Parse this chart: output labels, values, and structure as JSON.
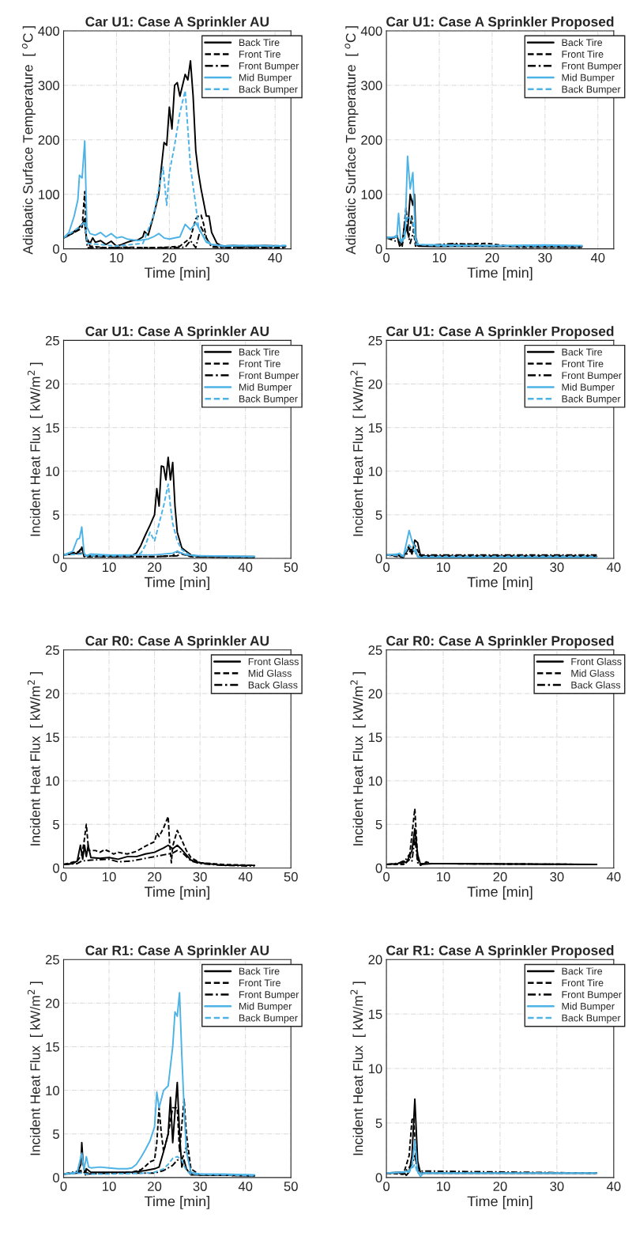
{
  "chart_data": [
    {
      "type": "line",
      "title": "Car U1: Case A Sprinkler AU",
      "xlabel": "Time [min]",
      "ylabel": "Adiabatic Surface Temperature  [ $^{o}$C ]",
      "xlim": [
        0,
        43
      ],
      "xticks": [
        0,
        10,
        20,
        30,
        40
      ],
      "ylim": [
        0,
        400
      ],
      "yticks": [
        0,
        100,
        200,
        300,
        400
      ],
      "grid": true,
      "legend": "top right",
      "series": [
        {
          "name": "Back Tire",
          "color": "#000000",
          "line_style": "solid",
          "x": [
            0,
            1,
            2,
            3,
            3.5,
            4,
            4.3,
            5,
            5.5,
            6,
            7,
            8,
            9,
            10,
            11,
            12,
            13,
            14,
            15,
            15.3,
            16,
            17,
            18,
            18.5,
            19,
            19.5,
            20,
            20.5,
            21,
            21.5,
            22,
            23,
            23.5,
            24,
            24.5,
            25,
            25.5,
            26,
            27,
            27.5,
            28,
            29,
            30,
            32,
            35,
            38,
            42
          ],
          "values": [
            20,
            25,
            32,
            40,
            45,
            55,
            20,
            10,
            20,
            12,
            15,
            8,
            14,
            5,
            8,
            12,
            15,
            16,
            22,
            32,
            25,
            60,
            100,
            150,
            195,
            190,
            260,
            220,
            300,
            305,
            280,
            320,
            310,
            345,
            280,
            180,
            140,
            110,
            60,
            60,
            30,
            10,
            5,
            6,
            5,
            6,
            5
          ]
        },
        {
          "name": "Front Tire",
          "color": "#000000",
          "line_style": "dashed",
          "x": [
            0,
            2,
            3.5,
            4,
            4.3,
            5,
            8,
            12,
            16,
            20,
            22,
            24,
            25,
            25.5,
            26,
            26.5,
            27,
            28,
            30,
            35,
            42
          ],
          "values": [
            20,
            30,
            40,
            105,
            20,
            5,
            2,
            3,
            2,
            3,
            5,
            20,
            55,
            60,
            62,
            45,
            20,
            5,
            3,
            3,
            3
          ]
        },
        {
          "name": "Front Bumper",
          "color": "#000000",
          "line_style": "dashdot",
          "x": [
            0,
            3,
            4,
            4.5,
            10,
            20,
            23,
            24,
            25,
            26,
            27,
            28,
            35,
            42
          ],
          "values": [
            20,
            35,
            45,
            2,
            2,
            2,
            3,
            15,
            2,
            40,
            20,
            3,
            2,
            2
          ]
        },
        {
          "name": "Mid Bumper",
          "color": "#4db3e6",
          "line_style": "solid",
          "x": [
            0,
            1,
            2,
            2.7,
            3,
            3.5,
            4,
            4.4,
            5,
            6,
            7,
            8,
            9,
            10,
            11,
            12,
            14,
            16,
            17,
            18,
            19,
            20,
            22,
            23,
            24,
            25,
            26,
            27,
            28,
            30,
            35,
            40,
            42
          ],
          "values": [
            20,
            30,
            60,
            90,
            135,
            130,
            198,
            40,
            28,
            25,
            30,
            22,
            28,
            20,
            22,
            18,
            15,
            18,
            22,
            28,
            20,
            18,
            22,
            45,
            35,
            48,
            30,
            12,
            8,
            5,
            6,
            5,
            6
          ]
        },
        {
          "name": "Back Bumper",
          "color": "#4db3e6",
          "line_style": "dashed",
          "x": [
            0,
            3,
            4,
            4.5,
            10,
            15,
            17,
            18,
            18.8,
            19.5,
            20,
            21,
            22,
            23,
            23.5,
            24,
            25,
            25.5,
            26,
            27,
            28,
            30,
            42
          ],
          "values": [
            20,
            40,
            50,
            10,
            5,
            10,
            60,
            110,
            150,
            80,
            140,
            190,
            250,
            290,
            220,
            150,
            80,
            40,
            30,
            15,
            8,
            6,
            6
          ]
        }
      ]
    },
    {
      "type": "line",
      "title": "Car U1: Case A Sprinkler Proposed",
      "xlabel": "Time [min]",
      "ylabel": "Adiabatic Surface Temperature  [ $^{o}$C ]",
      "xlim": [
        0,
        43
      ],
      "xticks": [
        0,
        10,
        20,
        30,
        40
      ],
      "ylim": [
        0,
        400
      ],
      "yticks": [
        0,
        100,
        200,
        300,
        400
      ],
      "grid": true,
      "legend": "top right",
      "series": [
        {
          "name": "Back Tire",
          "color": "#000000",
          "line_style": "solid",
          "x": [
            0,
            1.5,
            2,
            2.5,
            3,
            3.5,
            4,
            4.5,
            5,
            5.3,
            5.6,
            6,
            10,
            15,
            20,
            25,
            30,
            37
          ],
          "values": [
            20,
            20,
            25,
            5,
            10,
            50,
            30,
            100,
            80,
            100,
            10,
            5,
            4,
            5,
            4,
            5,
            4,
            4
          ]
        },
        {
          "name": "Front Tire",
          "color": "#000000",
          "line_style": "dashed",
          "x": [
            0,
            2,
            3,
            3.7,
            4.2,
            4.8,
            5.5,
            13,
            19,
            25,
            37
          ],
          "values": [
            20,
            22,
            5,
            75,
            20,
            60,
            5,
            8,
            10,
            3,
            3
          ]
        },
        {
          "name": "Front Bumper",
          "color": "#000000",
          "line_style": "dashdot",
          "x": [
            0,
            3,
            3.8,
            4.5,
            5.2,
            6,
            13,
            20,
            37
          ],
          "values": [
            20,
            10,
            40,
            10,
            35,
            5,
            10,
            5,
            3
          ]
        },
        {
          "name": "Mid Bumper",
          "color": "#4db3e6",
          "line_style": "solid",
          "x": [
            0,
            1.5,
            2,
            2.3,
            2.7,
            3.5,
            4,
            4.5,
            5,
            5.5,
            6,
            10,
            20,
            30,
            37
          ],
          "values": [
            20,
            22,
            25,
            65,
            15,
            20,
            170,
            110,
            140,
            20,
            8,
            7,
            6,
            7,
            6
          ]
        },
        {
          "name": "Back Bumper",
          "color": "#4db3e6",
          "line_style": "dashed",
          "x": [
            0,
            2,
            3,
            4,
            5,
            5.6,
            10,
            20,
            30,
            37
          ],
          "values": [
            20,
            22,
            10,
            60,
            50,
            8,
            5,
            5,
            5,
            5
          ]
        }
      ]
    },
    {
      "type": "line",
      "title": "Car U1: Case A Sprinkler AU",
      "xlabel": "Time [min]",
      "ylabel": "Incident Heat Flux  [ kW/m$^{2}$ ]",
      "xlim": [
        0,
        50
      ],
      "xticks": [
        0,
        10,
        20,
        30,
        40,
        50
      ],
      "ylim": [
        0,
        25
      ],
      "yticks": [
        0,
        5,
        10,
        15,
        20,
        25
      ],
      "grid": true,
      "legend": "top right",
      "series": [
        {
          "name": "Back Tire",
          "color": "#000000",
          "line_style": "solid",
          "x": [
            0,
            2,
            3,
            4,
            4.5,
            6,
            10,
            15,
            16,
            17,
            18,
            19,
            20,
            20.5,
            21,
            21.5,
            22,
            22.5,
            23,
            23.5,
            24,
            24.5,
            25,
            26,
            27,
            28,
            30,
            42
          ],
          "values": [
            0.4,
            0.5,
            0.6,
            1.2,
            0.3,
            0.3,
            0.3,
            0.3,
            0.6,
            1.5,
            2.7,
            3.8,
            5,
            8,
            6,
            10.6,
            10.5,
            9,
            11.6,
            9,
            11,
            6,
            3,
            1.2,
            0.8,
            0.4,
            0.2,
            0.2
          ]
        },
        {
          "name": "Front Tire",
          "color": "#000000",
          "line_style": "dashed",
          "x": [
            0,
            3.5,
            4,
            4.5,
            10,
            20,
            24,
            25,
            26,
            28,
            42
          ],
          "values": [
            0.4,
            0.8,
            1.3,
            0.2,
            0.2,
            0.2,
            0.3,
            0.8,
            0.5,
            0.2,
            0.1
          ]
        },
        {
          "name": "Front Bumper",
          "color": "#000000",
          "line_style": "dashdot",
          "x": [
            0,
            4,
            5,
            10,
            20,
            25,
            26,
            28,
            42
          ],
          "values": [
            0.4,
            0.6,
            0.2,
            0.2,
            0.2,
            0.3,
            0.6,
            0.2,
            0.1
          ]
        },
        {
          "name": "Mid Bumper",
          "color": "#4db3e6",
          "line_style": "solid",
          "x": [
            0,
            2,
            3,
            3.5,
            4,
            4.5,
            5,
            6,
            10,
            15,
            20,
            24,
            25,
            27,
            30,
            42
          ],
          "values": [
            0.4,
            0.8,
            2.2,
            2.3,
            3.6,
            0.6,
            0.3,
            0.5,
            0.4,
            0.4,
            0.4,
            0.6,
            0.8,
            0.4,
            0.3,
            0.2
          ]
        },
        {
          "name": "Back Bumper",
          "color": "#4db3e6",
          "line_style": "dashed",
          "x": [
            0,
            4,
            5,
            15,
            17,
            18,
            19,
            20,
            21,
            22,
            23,
            23.5,
            24,
            25,
            26,
            28,
            42
          ],
          "values": [
            0.4,
            0.5,
            0.3,
            0.3,
            0.6,
            1.5,
            3,
            2,
            4,
            6,
            8.5,
            6,
            4,
            2,
            1,
            0.3,
            0.2
          ]
        }
      ]
    },
    {
      "type": "line",
      "title": "Car U1: Case A Sprinkler Proposed",
      "xlabel": "Time [min]",
      "ylabel": "Incident Heat Flux  [ kW/m$^{2}$ ]",
      "xlim": [
        0,
        40
      ],
      "xticks": [
        0,
        10,
        20,
        30,
        40
      ],
      "ylim": [
        0,
        25
      ],
      "yticks": [
        0,
        5,
        10,
        15,
        20,
        25
      ],
      "grid": true,
      "legend": "top right",
      "series": [
        {
          "name": "Back Tire",
          "color": "#000000",
          "line_style": "solid",
          "x": [
            0,
            2,
            3,
            4,
            4.5,
            5,
            5.5,
            6,
            10,
            37
          ],
          "values": [
            0.4,
            0.4,
            0.2,
            1.2,
            0.5,
            2.1,
            1.8,
            0.3,
            0.2,
            0.2
          ]
        },
        {
          "name": "Front Tire",
          "color": "#000000",
          "line_style": "dashed",
          "x": [
            0,
            3,
            4,
            4.5,
            5,
            6,
            37
          ],
          "values": [
            0.4,
            0.1,
            1.5,
            0.8,
            1.5,
            0.3,
            0.3
          ]
        },
        {
          "name": "Front Bumper",
          "color": "#000000",
          "line_style": "dashdot",
          "x": [
            0,
            3,
            4.5,
            5.5,
            37
          ],
          "values": [
            0.4,
            0.2,
            1.0,
            0.4,
            0.4
          ]
        },
        {
          "name": "Mid Bumper",
          "color": "#4db3e6",
          "line_style": "solid",
          "x": [
            0,
            2,
            2.3,
            3,
            4,
            4.5,
            5,
            5.5,
            6,
            37
          ],
          "values": [
            0.4,
            0.5,
            0.6,
            0.2,
            3.2,
            2.0,
            1.3,
            0.2,
            0.1,
            0.1
          ]
        },
        {
          "name": "Back Bumper",
          "color": "#4db3e6",
          "line_style": "dashed",
          "x": [
            0,
            3,
            4,
            5,
            5.5,
            37
          ],
          "values": [
            0.4,
            0.3,
            1.5,
            0.8,
            0.2,
            0.2
          ]
        }
      ]
    },
    {
      "type": "line",
      "title": "Car R0: Case A Sprinkler AU",
      "xlabel": "Time [min]",
      "ylabel": "Incident Heat Flux  [ kW/m$^{2}$ ]",
      "xlim": [
        0,
        50
      ],
      "xticks": [
        0,
        10,
        20,
        30,
        40,
        50
      ],
      "ylim": [
        0,
        25
      ],
      "yticks": [
        0,
        5,
        10,
        15,
        20,
        25
      ],
      "grid": true,
      "legend": "top right",
      "series": [
        {
          "name": "Front Glass",
          "color": "#000000",
          "line_style": "solid",
          "x": [
            0,
            2,
            3,
            3.7,
            4.2,
            4.6,
            5,
            5.4,
            6,
            8,
            10,
            12,
            14,
            16,
            18,
            20,
            22,
            23,
            24,
            25,
            26,
            27,
            28,
            30,
            35,
            42
          ],
          "values": [
            0.4,
            0.5,
            0.8,
            2.6,
            1,
            2.6,
            1.3,
            2.6,
            1.2,
            1.1,
            1.2,
            1.0,
            1.3,
            1.3,
            1.6,
            1.8,
            2.3,
            2.6,
            2.2,
            2.6,
            2.1,
            1.5,
            0.9,
            0.6,
            0.3,
            0.3
          ]
        },
        {
          "name": "Mid Glass",
          "color": "#000000",
          "line_style": "dashed",
          "x": [
            0,
            3,
            4,
            4.5,
            5,
            5.5,
            7,
            8,
            9,
            10,
            11,
            12,
            14,
            16,
            18,
            20,
            20.5,
            21,
            22,
            23,
            23.3,
            23.7,
            24,
            25,
            26,
            27,
            28,
            30,
            35,
            42
          ],
          "values": [
            0.4,
            0.8,
            1.5,
            3,
            5,
            2,
            2,
            1.8,
            2.1,
            1.9,
            1.6,
            1.8,
            1.6,
            1.9,
            2.5,
            3,
            4,
            3.6,
            4.6,
            5.9,
            3,
            0.6,
            2.5,
            4.3,
            3.2,
            2,
            1.2,
            0.6,
            0.4,
            0.3
          ]
        },
        {
          "name": "Back Glass",
          "color": "#000000",
          "line_style": "dashdot",
          "x": [
            0,
            3,
            4,
            6,
            10,
            12,
            15,
            18,
            20,
            22,
            24,
            25,
            26,
            27,
            28,
            30,
            35,
            42
          ],
          "values": [
            0.4,
            0.5,
            0.8,
            0.9,
            1.0,
            0.7,
            0.8,
            1.1,
            1.3,
            1.5,
            1.7,
            2.0,
            1.8,
            1.3,
            0.8,
            0.5,
            0.3,
            0.2
          ]
        }
      ]
    },
    {
      "type": "line",
      "title": "Car R0: Case A Sprinkler Proposed",
      "xlabel": "Time [min]",
      "ylabel": "Incident Heat Flux  [ kW/m$^{2}$ ]",
      "xlim": [
        0,
        40
      ],
      "xticks": [
        0,
        10,
        20,
        30,
        40
      ],
      "ylim": [
        0,
        25
      ],
      "yticks": [
        0,
        5,
        10,
        15,
        20,
        25
      ],
      "grid": true,
      "legend": "top right",
      "series": [
        {
          "name": "Front Glass",
          "color": "#000000",
          "line_style": "solid",
          "x": [
            0,
            2,
            3,
            3.5,
            4.5,
            5,
            5.5,
            6,
            8,
            10,
            37
          ],
          "values": [
            0.4,
            0.5,
            0.8,
            0.6,
            2,
            4.5,
            1.5,
            0.4,
            0.5,
            0.5,
            0.4
          ]
        },
        {
          "name": "Mid Glass",
          "color": "#000000",
          "line_style": "dashed",
          "x": [
            0,
            3,
            4,
            5,
            5.5,
            6,
            7,
            8,
            37
          ],
          "values": [
            0.4,
            0.4,
            0.9,
            6.8,
            1,
            0.3,
            0.7,
            0.5,
            0.4
          ]
        },
        {
          "name": "Back Glass",
          "color": "#000000",
          "line_style": "dashdot",
          "x": [
            0,
            3,
            4,
            4.5,
            5,
            5.5,
            6,
            37
          ],
          "values": [
            0.4,
            0.6,
            1.5,
            0.8,
            3.5,
            0.6,
            0.5,
            0.4
          ]
        }
      ]
    },
    {
      "type": "line",
      "title": "Car R1: Case A Sprinkler AU",
      "xlabel": "Time [min]",
      "ylabel": "Incident Heat Flux  [ kW/m$^{2}$ ]",
      "xlim": [
        0,
        50
      ],
      "xticks": [
        0,
        10,
        20,
        30,
        40,
        50
      ],
      "ylim": [
        0,
        25
      ],
      "yticks": [
        0,
        5,
        10,
        15,
        20,
        25
      ],
      "grid": true,
      "legend": "top right",
      "series": [
        {
          "name": "Back Tire",
          "color": "#000000",
          "line_style": "solid",
          "x": [
            0,
            3,
            3.8,
            4,
            4.3,
            4.8,
            5,
            6,
            10,
            15,
            18,
            20,
            21,
            22,
            23,
            23.5,
            24,
            24.5,
            25,
            25.5,
            26,
            26.5,
            27,
            28,
            30,
            42
          ],
          "values": [
            0.4,
            0.5,
            1.5,
            4.0,
            1.5,
            0.3,
            1.0,
            0.6,
            0.6,
            0.6,
            0.8,
            1.0,
            1.2,
            3,
            5,
            9.2,
            4,
            7.5,
            10.9,
            5,
            1.2,
            2,
            1,
            0.3,
            0.3,
            0.2
          ]
        },
        {
          "name": "Front Tire",
          "color": "#000000",
          "line_style": "dashed",
          "x": [
            0,
            4,
            5,
            10,
            15,
            17,
            18,
            19,
            20,
            20.5,
            21,
            21.5,
            22,
            23,
            24,
            25,
            25.5,
            26,
            26.5,
            27,
            28,
            30,
            42
          ],
          "values": [
            0.4,
            0.6,
            0.5,
            0.5,
            0.6,
            0.9,
            1.3,
            1.8,
            2,
            4,
            8,
            5,
            3,
            5,
            8,
            8,
            3,
            6,
            9,
            5,
            1,
            0.3,
            0.2
          ]
        },
        {
          "name": "Front Bumper",
          "color": "#000000",
          "line_style": "dashdot",
          "x": [
            0,
            4,
            5,
            10,
            15,
            20,
            22,
            24,
            25,
            26,
            27,
            28,
            30,
            42
          ],
          "values": [
            0.4,
            0.8,
            0.4,
            0.5,
            0.5,
            0.5,
            0.8,
            1.4,
            2,
            2,
            3.5,
            0.5,
            0.3,
            0.2
          ]
        },
        {
          "name": "Mid Bumper",
          "color": "#4db3e6",
          "line_style": "solid",
          "x": [
            0,
            3,
            4,
            4.5,
            5,
            5.5,
            6,
            8,
            10,
            12,
            14,
            15,
            16,
            17,
            18,
            19,
            20,
            20.5,
            21,
            22,
            23,
            24,
            24.5,
            25,
            25.5,
            26,
            26.5,
            27,
            28,
            30,
            35,
            42
          ],
          "values": [
            0.4,
            0.6,
            2.8,
            0.9,
            2.4,
            1.2,
            1.1,
            1.2,
            1.1,
            1.0,
            1.0,
            1.1,
            1.5,
            2.3,
            3.2,
            4.2,
            5.8,
            9.8,
            8,
            10,
            10.5,
            15,
            19,
            18.5,
            21.2,
            14,
            8,
            3,
            0.6,
            0.4,
            0.4,
            0.3
          ]
        },
        {
          "name": "Back Bumper",
          "color": "#4db3e6",
          "line_style": "dashed",
          "x": [
            0,
            4,
            5,
            10,
            18,
            20,
            22,
            23,
            24,
            25,
            26,
            27,
            28,
            42
          ],
          "values": [
            0.4,
            0.5,
            0.4,
            0.4,
            0.5,
            0.6,
            1.0,
            1.5,
            2.2,
            2.4,
            2,
            0.8,
            0.4,
            0.2
          ]
        }
      ]
    },
    {
      "type": "line",
      "title": "Car R1: Case A Sprinkler Proposed",
      "xlabel": "Time [min]",
      "ylabel": "Incident Heat Flux  [ kW/m$^{2}$ ]",
      "xlim": [
        0,
        40
      ],
      "xticks": [
        0,
        10,
        20,
        30,
        40
      ],
      "ylim": [
        0,
        20
      ],
      "yticks": [
        0,
        5,
        10,
        15,
        20
      ],
      "grid": true,
      "legend": "top right",
      "series": [
        {
          "name": "Back Tire",
          "color": "#000000",
          "line_style": "solid",
          "x": [
            0,
            3,
            3.5,
            4,
            4.5,
            5,
            5.5,
            6,
            37
          ],
          "values": [
            0.4,
            0.5,
            0.2,
            0.5,
            2,
            7.2,
            1.5,
            0.4,
            0.4
          ]
        },
        {
          "name": "Front Tire",
          "color": "#000000",
          "line_style": "dashed",
          "x": [
            0,
            3,
            4,
            4.5,
            4.8,
            5.2,
            6,
            37
          ],
          "values": [
            0.4,
            0.3,
            2,
            5.3,
            5.5,
            1.5,
            0.4,
            0.4
          ]
        },
        {
          "name": "Front Bumper",
          "color": "#000000",
          "line_style": "dashdot",
          "x": [
            0,
            3,
            4.5,
            5,
            5.5,
            37
          ],
          "values": [
            0.4,
            0.4,
            1.2,
            2,
            0.6,
            0.4
          ]
        },
        {
          "name": "Mid Bumper",
          "color": "#4db3e6",
          "line_style": "solid",
          "x": [
            0,
            3,
            4,
            4.5,
            5,
            5.5,
            6,
            6.5,
            37
          ],
          "values": [
            0.4,
            0.5,
            0.6,
            1,
            3.4,
            0.5,
            0.1,
            0.4,
            0.4
          ]
        },
        {
          "name": "Back Bumper",
          "color": "#4db3e6",
          "line_style": "dashed",
          "x": [
            0,
            4,
            5,
            5.5,
            37
          ],
          "values": [
            0.4,
            0.5,
            1.2,
            0.4,
            0.4
          ]
        }
      ]
    }
  ]
}
